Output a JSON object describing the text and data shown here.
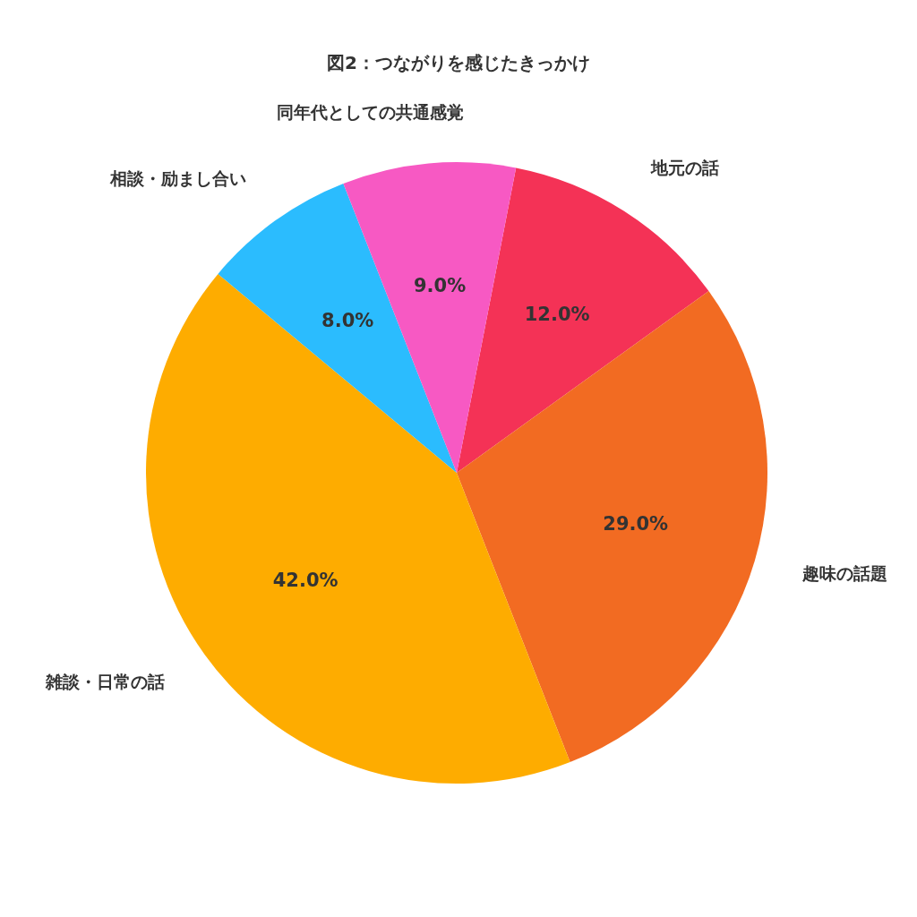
{
  "chart_data": {
    "type": "pie",
    "title": "図2：つながりを感じたきっかけ",
    "categories": [
      "地元の話",
      "趣味の話題",
      "雑談・日常の話",
      "相談・励まし合い",
      "同年代としての共通感覚"
    ],
    "values": [
      12,
      29,
      42,
      8,
      9
    ],
    "value_labels": [
      "12.0%",
      "29.0%",
      "42.0%",
      "8.0%",
      "9.0%"
    ],
    "colors": [
      "#f43256",
      "#f26b22",
      "#feac00",
      "#2bbcfe",
      "#f759c3"
    ],
    "legend": false
  }
}
